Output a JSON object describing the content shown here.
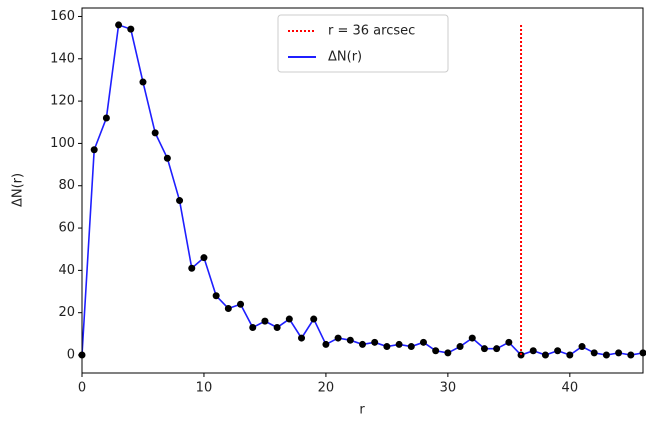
{
  "chart_data": {
    "type": "line",
    "x": [
      0,
      1,
      2,
      3,
      4,
      5,
      6,
      7,
      8,
      9,
      10,
      11,
      12,
      13,
      14,
      15,
      16,
      17,
      18,
      19,
      20,
      21,
      22,
      23,
      24,
      25,
      26,
      27,
      28,
      29,
      30,
      31,
      32,
      33,
      34,
      35,
      36,
      37,
      38,
      39,
      40,
      41,
      42,
      43,
      44,
      45,
      46
    ],
    "series": [
      {
        "name": "ΔN(r)",
        "color": "#1f1fff",
        "marker_color": "#000000",
        "values": [
          0,
          97,
          112,
          156,
          154,
          129,
          105,
          93,
          73,
          41,
          46,
          28,
          22,
          24,
          13,
          16,
          13,
          17,
          8,
          17,
          5,
          8,
          7,
          5,
          6,
          4,
          5,
          4,
          6,
          2,
          1,
          4,
          8,
          3,
          3,
          6,
          0,
          2,
          0,
          2,
          0,
          4,
          1,
          0,
          1,
          0,
          1
        ]
      }
    ],
    "vline": {
      "name": "r = 36 arcsec",
      "color": "#ff0000",
      "x": 36,
      "ymin": 0,
      "ymax": 156
    },
    "xlabel": "r",
    "ylabel": "ΔN(r)",
    "xlim": [
      0,
      46
    ],
    "ylim": [
      -8.5,
      164
    ],
    "xticks": [
      0,
      10,
      20,
      30,
      40
    ],
    "yticks": [
      0,
      20,
      40,
      60,
      80,
      100,
      120,
      140,
      160
    ],
    "grid": false
  }
}
